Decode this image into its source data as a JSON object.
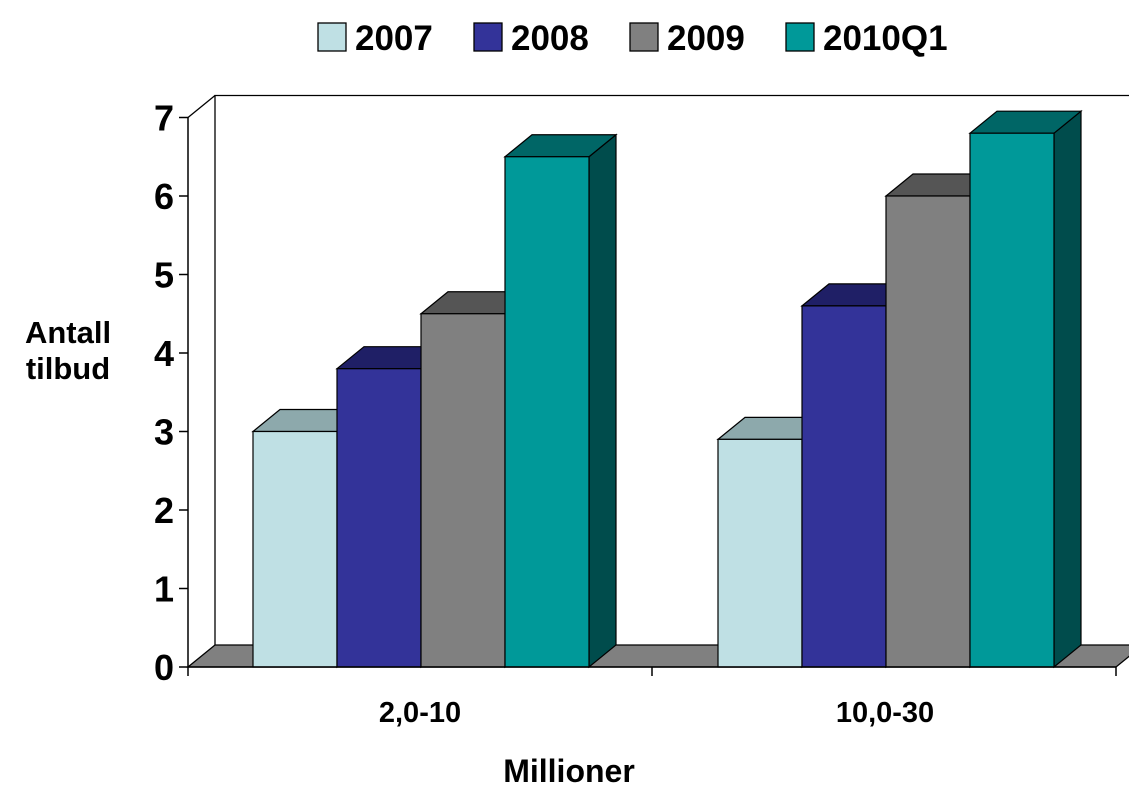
{
  "chart_data": {
    "type": "bar",
    "title": "",
    "xlabel": "Millioner",
    "ylabel": [
      "Antall",
      "tilbud"
    ],
    "categories": [
      "2,0-10",
      "10,0-30"
    ],
    "series": [
      {
        "name": "2007",
        "values": [
          3.0,
          2.9
        ],
        "color": "#BFE0E4",
        "top": "#8DA9AC",
        "side": "#5E7A7D"
      },
      {
        "name": "2008",
        "values": [
          3.8,
          4.6
        ],
        "color": "#333399",
        "top": "#1F1F66",
        "side": "#1A1A55"
      },
      {
        "name": "2009",
        "values": [
          4.5,
          6.0
        ],
        "color": "#808080",
        "top": "#555555",
        "side": "#4A4A4A"
      },
      {
        "name": "2010Q1",
        "values": [
          6.5,
          6.8
        ],
        "color": "#009999",
        "top": "#006666",
        "side": "#004C4C"
      }
    ],
    "ylim": [
      0,
      7
    ],
    "yticks": [
      "0",
      "1",
      "2",
      "3",
      "4",
      "5",
      "6",
      "7"
    ],
    "legend": "top",
    "grid": false,
    "style": "3d-clustered-column"
  }
}
